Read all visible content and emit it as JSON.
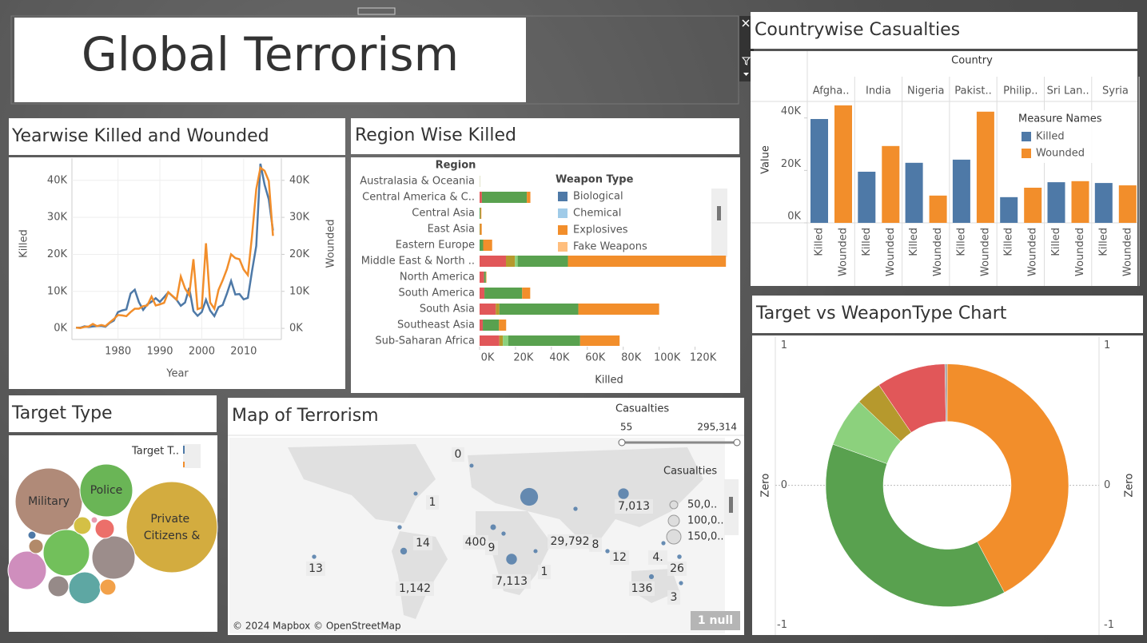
{
  "title": "Global Terrorism",
  "chart_data": [
    {
      "type": "line",
      "title": "Yearwise Killed and Wounded",
      "xlabel": "Year",
      "x": [
        1970,
        1971,
        1972,
        1973,
        1974,
        1975,
        1976,
        1977,
        1978,
        1979,
        1980,
        1981,
        1982,
        1983,
        1984,
        1985,
        1986,
        1987,
        1988,
        1989,
        1990,
        1991,
        1992,
        1994,
        1995,
        1996,
        1997,
        1998,
        1999,
        2000,
        2001,
        2002,
        2003,
        2004,
        2005,
        2006,
        2007,
        2008,
        2009,
        2010,
        2011,
        2012,
        2013,
        2014,
        2015,
        2016,
        2017
      ],
      "xlim": [
        1969,
        2019
      ],
      "xticks": [
        1980,
        1990,
        2000,
        2010
      ],
      "ylim": [
        -3000,
        46000
      ],
      "yticks": [
        {
          "value": 0,
          "label": "0K"
        },
        {
          "value": 10000,
          "label": "10K"
        },
        {
          "value": 20000,
          "label": "20K"
        },
        {
          "value": 30000,
          "label": "30K"
        },
        {
          "value": 40000,
          "label": "40K"
        }
      ],
      "y2lim": [
        -3000,
        46000
      ],
      "y2ticks": [
        {
          "value": 0,
          "label": "0K"
        },
        {
          "value": 10000,
          "label": "10K"
        },
        {
          "value": 20000,
          "label": "20K"
        },
        {
          "value": 30000,
          "label": "30K"
        },
        {
          "value": 40000,
          "label": "40K"
        }
      ],
      "grid": true,
      "series": [
        {
          "name": "Killed",
          "color": "#4e79a7",
          "values": [
            174,
            173,
            566,
            370,
            539,
            617,
            674,
            456,
            1459,
            2100,
            4400,
            4851,
            5136,
            9444,
            10450,
            7094,
            4976,
            6482,
            7208,
            8152,
            7148,
            8429,
            9742,
            7690,
            6103,
            6966,
            10924,
            4688,
            3393,
            4403,
            7729,
            4805,
            3317,
            5743,
            6331,
            9380,
            12824,
            9157,
            9273,
            7827,
            8246,
            15497,
            22273,
            44490,
            38853,
            34871,
            26445
          ]
        },
        {
          "name": "Wounded",
          "color": "#f28e2b",
          "axis": "y2",
          "values": [
            212,
            82,
            409,
            495,
            1177,
            600,
            900,
            600,
            1600,
            2500,
            3600,
            3500,
            3300,
            4400,
            5300,
            5300,
            6000,
            6200,
            8600,
            6200,
            6500,
            6900,
            9800,
            7800,
            14000,
            10800,
            9000,
            18700,
            5200,
            5600,
            23000,
            7000,
            5300,
            10400,
            13000,
            16000,
            20000,
            19000,
            18700,
            15900,
            14400,
            25000,
            37600,
            43400,
            42600,
            39800,
            25000
          ]
        }
      ]
    },
    {
      "type": "hbar_stacked",
      "title": "Region Wise Killed",
      "categories_title": "Region",
      "xlabel": "Killed",
      "categories": [
        "Australasia & Oceania",
        "Central America & C..",
        "Central Asia",
        "East Asia",
        "Eastern Europe",
        "Middle East & North ..",
        "North America",
        "South America",
        "South Asia",
        "Southeast Asia",
        "Sub-Saharan Africa"
      ],
      "xlim": [
        0,
        138000
      ],
      "xticks": [
        {
          "value": 0,
          "label": "0K"
        },
        {
          "value": 20000,
          "label": "20K"
        },
        {
          "value": 40000,
          "label": "40K"
        },
        {
          "value": 60000,
          "label": "60K"
        },
        {
          "value": 80000,
          "label": "80K"
        },
        {
          "value": 100000,
          "label": "100K"
        },
        {
          "value": 120000,
          "label": "120K"
        }
      ],
      "legend_title": "Weapon Type",
      "legend": [
        {
          "name": "Biological",
          "color": "#4e79a7"
        },
        {
          "name": "Chemical",
          "color": "#a0cbe8"
        },
        {
          "name": "Explosives",
          "color": "#f28e2b"
        },
        {
          "name": "Fake Weapons",
          "color": "#ffbe7d"
        }
      ],
      "series": [
        {
          "color": "#e15759",
          "values": [
            0,
            1300,
            0,
            0,
            0,
            14700,
            2500,
            2700,
            9000,
            1800,
            11000
          ]
        },
        {
          "color": "#b6992d",
          "values": [
            0,
            0,
            0,
            0,
            0,
            5000,
            0,
            0,
            2000,
            0,
            2000
          ]
        },
        {
          "color": "#8cd17d",
          "values": [
            0,
            0,
            0,
            0,
            0,
            1500,
            0,
            0,
            0,
            0,
            3000
          ]
        },
        {
          "color": "#59a14f",
          "values": [
            100,
            25000,
            500,
            200,
            2000,
            28000,
            1000,
            21000,
            44000,
            9000,
            40000
          ]
        },
        {
          "color": "#f28e2b",
          "values": [
            50,
            2000,
            500,
            1000,
            5000,
            88000,
            300,
            4500,
            45000,
            4000,
            22000
          ]
        }
      ]
    },
    {
      "type": "bubble",
      "title": "Target Type",
      "legend_title": "Target T..",
      "labels": [
        "Private Citizens &",
        "Military",
        "Police",
        null,
        null,
        null,
        null,
        null,
        null,
        null,
        null,
        null,
        null,
        null
      ],
      "values": [
        324.9,
        176.4,
        108.9,
        84.1,
        72.9,
        57.6,
        40,
        16.9,
        10,
        14.4,
        12.1,
        8.1,
        1.6,
        2.5
      ],
      "colors": [
        "#d3ac3f",
        "#b08a78",
        "#6ab556",
        "#72c05b",
        "#9c8d8b",
        "#cf8ebd",
        "#5ea7a3",
        "#968a88",
        "#f2a14a",
        "#ec6f6a",
        "#d4c045",
        "#b28a6a",
        "#e99ab0",
        "#4e79a7"
      ]
    },
    {
      "type": "map",
      "title": "Map of Terrorism",
      "filter_title": "Casualties",
      "filter_range": [
        55,
        295314
      ],
      "filter_range_labels": [
        "55",
        "295,314"
      ],
      "size_legend_title": "Casualties",
      "size_legend": [
        "50,0..",
        "100,0..",
        "150,0.."
      ],
      "values": [
        0,
        1,
        14,
        400,
        9,
        29792,
        8,
        7013,
        13,
        1142,
        7113,
        1,
        12,
        4,
        26,
        136,
        3
      ],
      "value_labels": [
        "0",
        "1",
        "14",
        "400",
        "9",
        "29,792",
        "8",
        "7,013",
        "13",
        "1,142",
        "7,113",
        "1",
        "12",
        "4.",
        "26",
        "136",
        "3"
      ],
      "attribution": "© 2024 Mapbox © OpenStreetMap",
      "null_badge": "1 null"
    },
    {
      "type": "bar",
      "title": "Countrywise Casualties",
      "header": "Country",
      "ylabel": "Value",
      "categories": [
        "Afgha..",
        "India",
        "Nigeria",
        "Pakist..",
        "Philip..",
        "Sri Lan..",
        "Syria"
      ],
      "ylim": [
        0,
        46300
      ],
      "yticks": [
        {
          "value": 0,
          "label": "0K"
        },
        {
          "value": 20000,
          "label": "20K"
        },
        {
          "value": 40000,
          "label": "40K"
        }
      ],
      "legend_title": "Measure Names",
      "series": [
        {
          "name": "Killed",
          "color": "#4e79a7",
          "values": [
            39600,
            19500,
            22900,
            24100,
            9800,
            15500,
            15200
          ]
        },
        {
          "name": "Wounded",
          "color": "#f28e2b",
          "values": [
            44800,
            29300,
            10400,
            42400,
            13400,
            15900,
            14300
          ]
        }
      ]
    },
    {
      "type": "pie",
      "title": "Target vs WeaponType Chart",
      "ylabel": "Zero",
      "y2label": "Zero",
      "values": [
        42.2,
        38.3,
        6.6,
        3.4,
        9.2,
        0.3
      ],
      "colors": [
        "#f28e2b",
        "#59a14f",
        "#8cd17d",
        "#b6992d",
        "#e15759",
        "#a0a0a0"
      ],
      "ylim": [
        -1.07,
        1.06
      ],
      "yticks": [
        1,
        0,
        -1
      ],
      "y2ticks": [
        1,
        0,
        -1
      ]
    }
  ]
}
